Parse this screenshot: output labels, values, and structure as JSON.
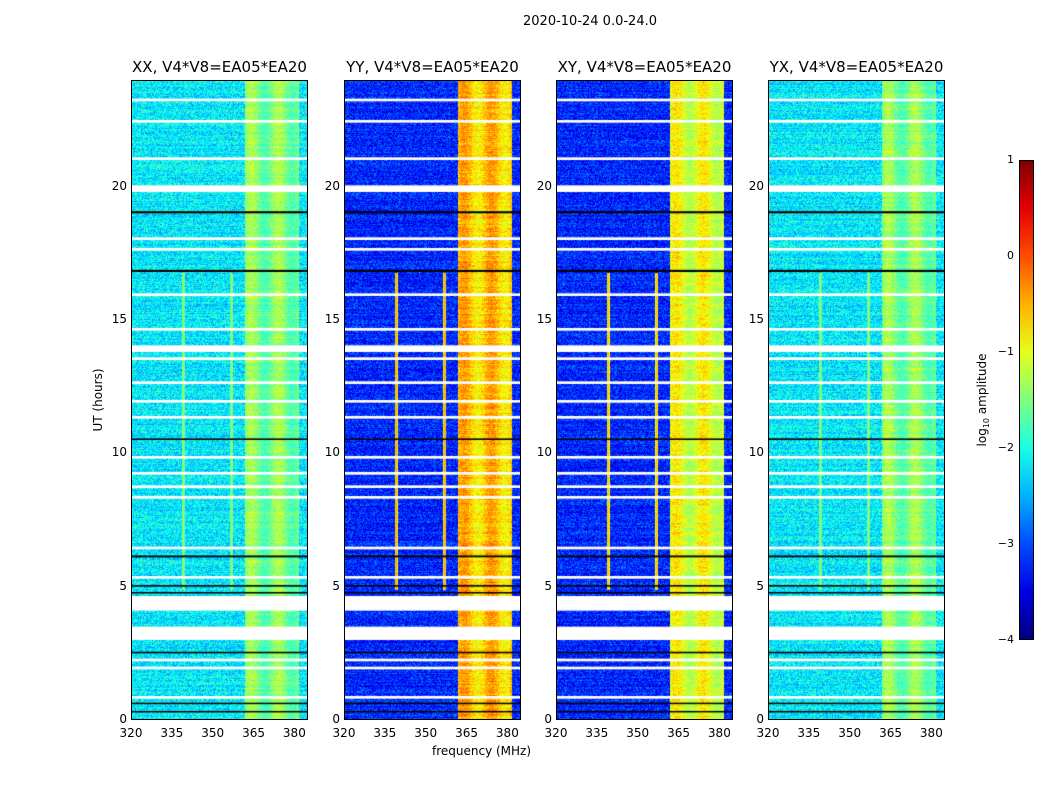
{
  "chart_data": {
    "type": "heatmap",
    "title": "2020-10-24 0.0-24.0",
    "xlabel": "frequency (MHz)",
    "ylabel": "UT (hours)",
    "xlim": [
      320,
      385
    ],
    "ylim": [
      0,
      24
    ],
    "xticks": [
      "320",
      "335",
      "350",
      "365",
      "380"
    ],
    "xtick_values": [
      320,
      335,
      350,
      365,
      380
    ],
    "yticks": [
      "0",
      "5",
      "10",
      "15",
      "20"
    ],
    "ytick_values": [
      0,
      5,
      10,
      15,
      20
    ],
    "colorbar": {
      "label_main": "log",
      "label_sub": "10",
      "label_rest": " amplitude",
      "range": [
        -4,
        1
      ],
      "ticks": [
        "1",
        "0",
        "−1",
        "−2",
        "−3",
        "−4"
      ],
      "tick_values": [
        1,
        0,
        -1,
        -2,
        -3,
        -4
      ],
      "colormap": "jet"
    },
    "panels": [
      {
        "title": "XX, V4*V8=EA05*EA20",
        "base": -2.2,
        "band": -1.5,
        "rfi": -1.3
      },
      {
        "title": "YY, V4*V8=EA05*EA20",
        "base": -3.2,
        "band": -0.6,
        "rfi": -0.4
      },
      {
        "title": "XY, V4*V8=EA05*EA20",
        "base": -3.2,
        "band": -1.0,
        "rfi": -0.5
      },
      {
        "title": "YX, V4*V8=EA05*EA20",
        "base": -2.2,
        "band": -1.5,
        "rfi": -1.3
      }
    ],
    "band_mhz": [
      361.5,
      381.5
    ],
    "rfi_lines_mhz": [
      339,
      356.8
    ],
    "rfi_hours": [
      4.9,
      16.8
    ],
    "flagged_hours": [
      [
        4.1,
        4.65
      ],
      [
        3.0,
        3.5
      ],
      [
        19.8,
        20.05
      ],
      [
        23.2,
        23.3
      ],
      [
        22.4,
        22.5
      ],
      [
        21.0,
        21.1
      ],
      [
        18.0,
        18.1
      ],
      [
        17.6,
        17.7
      ],
      [
        15.9,
        16.0
      ],
      [
        14.6,
        14.7
      ],
      [
        13.8,
        14.05
      ],
      [
        13.5,
        13.6
      ],
      [
        12.6,
        12.7
      ],
      [
        11.9,
        12.0
      ],
      [
        11.3,
        11.4
      ],
      [
        9.8,
        9.9
      ],
      [
        9.2,
        9.3
      ],
      [
        8.7,
        8.8
      ],
      [
        8.3,
        8.4
      ],
      [
        6.4,
        6.5
      ],
      [
        5.3,
        5.4
      ],
      [
        2.2,
        2.3
      ],
      [
        1.9,
        2.0
      ],
      [
        0.8,
        0.9
      ]
    ],
    "dark_hours": [
      [
        19.0,
        19.08
      ],
      [
        16.8,
        16.88
      ],
      [
        10.5,
        10.56
      ],
      [
        6.1,
        6.17
      ],
      [
        5.0,
        5.06
      ],
      [
        4.75,
        4.8
      ],
      [
        2.5,
        2.56
      ],
      [
        0.6,
        0.65
      ],
      [
        0.3,
        0.34
      ]
    ]
  }
}
